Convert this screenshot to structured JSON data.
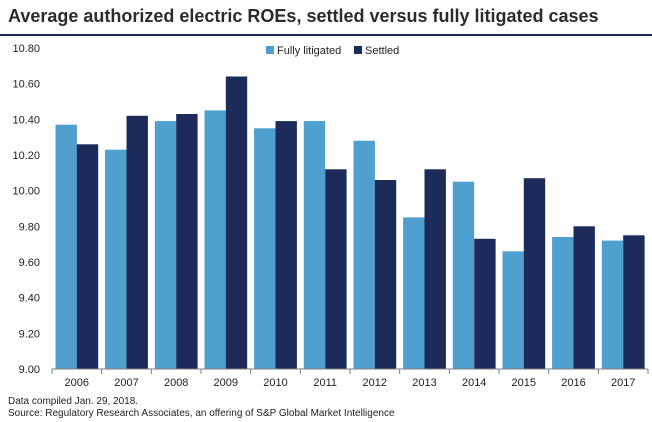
{
  "chart_data": {
    "type": "bar",
    "title": "Average authorized electric ROEs, settled versus fully litigated cases",
    "categories": [
      "2006",
      "2007",
      "2008",
      "2009",
      "2010",
      "2011",
      "2012",
      "2013",
      "2014",
      "2015",
      "2016",
      "2017"
    ],
    "series": [
      {
        "name": "Fully litigated",
        "color": "#4f9fcf",
        "values": [
          10.37,
          10.23,
          10.39,
          10.45,
          10.35,
          10.39,
          10.28,
          9.85,
          10.05,
          9.66,
          9.74,
          9.72
        ]
      },
      {
        "name": "Settled",
        "color": "#1c2b5a",
        "values": [
          10.26,
          10.42,
          10.43,
          10.64,
          10.39,
          10.12,
          10.06,
          10.12,
          9.73,
          10.07,
          9.8,
          9.75
        ]
      }
    ],
    "ylim": [
      9.0,
      10.8
    ],
    "yticks": [
      "9.00",
      "9.20",
      "9.40",
      "9.60",
      "9.80",
      "10.00",
      "10.20",
      "10.40",
      "10.60",
      "10.80"
    ],
    "legend_position": "top-center",
    "grid": false
  },
  "footer": {
    "note": "Data compiled Jan. 29, 2018.",
    "source": "Source: Regulatory Research Associates, an offering of S&P Global Market Intelligence"
  }
}
